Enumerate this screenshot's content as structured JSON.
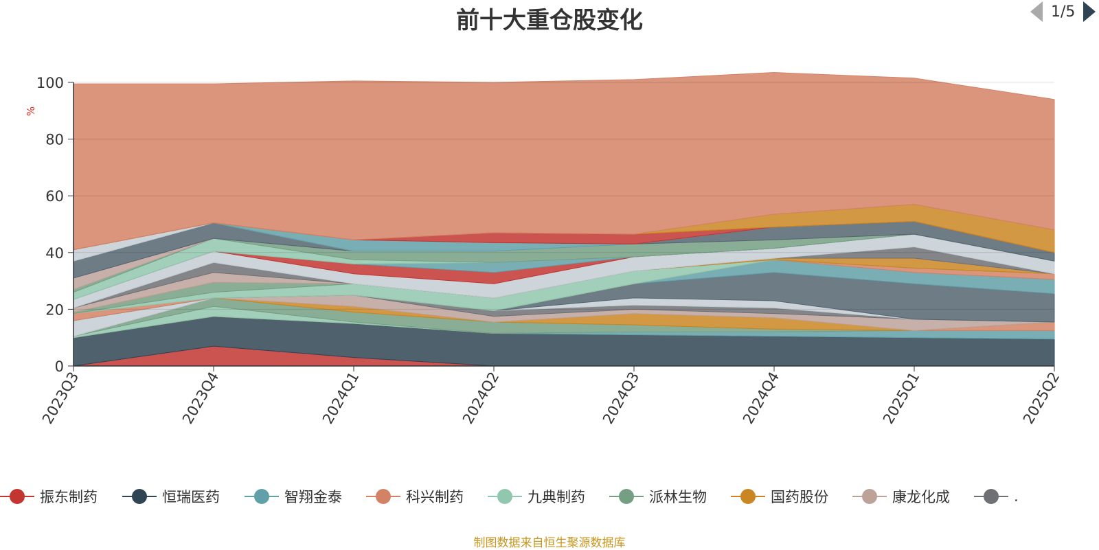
{
  "title": "前十大重仓股变化",
  "source_note": "制图数据来自恒生聚源数据库",
  "legend_pager": "1/5",
  "chart_data": {
    "type": "area",
    "stacked": true,
    "title": "前十大重仓股变化",
    "ylabel": "%",
    "ylim": [
      0,
      100
    ],
    "yticks": [
      0,
      20,
      40,
      60,
      80,
      100
    ],
    "categories": [
      "2023Q3",
      "2023Q4",
      "2024Q1",
      "2024Q2",
      "2024Q3",
      "2024Q4",
      "2025Q1",
      "2025Q2"
    ],
    "legend_position": "bottom",
    "grid": true,
    "series": [
      {
        "name": "振东制药",
        "color": "#c23531",
        "values": [
          0,
          7,
          3,
          0,
          0,
          0,
          0,
          0
        ]
      },
      {
        "name": "恒瑞医药",
        "color": "#2f4554",
        "values": [
          10,
          10.5,
          12,
          11.5,
          11,
          10.5,
          10,
          9.5
        ]
      },
      {
        "name": "智翔金泰",
        "color": "#61a0a8",
        "values": [
          0,
          0,
          0,
          0,
          1,
          1.5,
          2.5,
          3
        ]
      },
      {
        "name": "科兴制药",
        "color": "#d48265",
        "values": [
          0,
          0,
          0,
          0,
          0,
          0,
          0,
          3
        ]
      },
      {
        "name": "九典制药",
        "color": "#91c7ae",
        "values": [
          0.5,
          3.5,
          0.5,
          0,
          0,
          0,
          0,
          0
        ]
      },
      {
        "name": "派林生物",
        "color": "#749f83",
        "values": [
          0,
          3,
          3.5,
          4,
          2.5,
          1,
          0,
          0
        ]
      },
      {
        "name": "国药股份",
        "color": "#ca8622",
        "values": [
          0,
          0,
          2,
          0,
          4,
          4,
          0,
          0
        ]
      },
      {
        "name": "康龙化成",
        "color": "#bda29a",
        "values": [
          0,
          0,
          4,
          2,
          1.5,
          1.5,
          4,
          0
        ]
      },
      {
        "name": "",
        "color": "#6e7074",
        "values": [
          0,
          0,
          0,
          2,
          1.5,
          2,
          0,
          0
        ]
      },
      {
        "name": "",
        "color": "#c4ccd3",
        "values": [
          5.5,
          0,
          0,
          0,
          2.5,
          2.5,
          0,
          0
        ]
      },
      {
        "name": "",
        "color": "#546570",
        "values": [
          0,
          0,
          0,
          0,
          5,
          10,
          12.5,
          10
        ]
      },
      {
        "name": "",
        "color": "#61a0a8",
        "values": [
          0,
          0,
          0,
          0,
          0,
          4.5,
          4,
          5
        ]
      },
      {
        "name": "",
        "color": "#d48265",
        "values": [
          2.5,
          0,
          0,
          0,
          0,
          0,
          1.5,
          2
        ]
      },
      {
        "name": "",
        "color": "#91c7ae",
        "values": [
          0,
          2,
          4,
          4.5,
          4.5,
          0,
          0,
          0
        ]
      },
      {
        "name": "",
        "color": "#749f83",
        "values": [
          0.5,
          3.5,
          0,
          0,
          0,
          0,
          0,
          0
        ]
      },
      {
        "name": "",
        "color": "#ca8622",
        "values": [
          0,
          0,
          0,
          0,
          0,
          0.5,
          3.5,
          0
        ]
      },
      {
        "name": "",
        "color": "#bda29a",
        "values": [
          1.5,
          3.5,
          0,
          0,
          0,
          0,
          0,
          0
        ]
      },
      {
        "name": "",
        "color": "#6e7074",
        "values": [
          0,
          3.5,
          0,
          0,
          0,
          0,
          4,
          0
        ]
      },
      {
        "name": "",
        "color": "#c4ccd3",
        "values": [
          3,
          4,
          3.5,
          5,
          5,
          3.5,
          4.5,
          4.5
        ]
      },
      {
        "name": "",
        "color": "#c23531",
        "values": [
          0,
          0,
          3.5,
          4,
          0,
          0,
          0,
          0
        ]
      },
      {
        "name": "",
        "color": "#61a0a8",
        "values": [
          0,
          0,
          0,
          3.5,
          0,
          0,
          0,
          0
        ]
      },
      {
        "name": "",
        "color": "#91c7ae",
        "values": [
          2.5,
          4.5,
          1.5,
          0,
          0,
          0,
          0,
          0
        ]
      },
      {
        "name": "",
        "color": "#749f83",
        "values": [
          1,
          0,
          3,
          4,
          4.5,
          3,
          0,
          0
        ]
      },
      {
        "name": "",
        "color": "#bda29a",
        "values": [
          4,
          0,
          0,
          0,
          0,
          0,
          0,
          0
        ]
      },
      {
        "name": "",
        "color": "#546570",
        "values": [
          6,
          5.5,
          0,
          0,
          0,
          4.5,
          4.5,
          3
        ]
      },
      {
        "name": "",
        "color": "#c4ccd3",
        "values": [
          4,
          0,
          0,
          0,
          0,
          0,
          0,
          0
        ]
      },
      {
        "name": "",
        "color": "#61a0a8",
        "values": [
          0,
          0,
          4,
          3,
          0,
          0,
          0,
          0
        ]
      },
      {
        "name": "",
        "color": "#c23531",
        "values": [
          0,
          0,
          0,
          3.5,
          3.5,
          0,
          0,
          0
        ]
      },
      {
        "name": "",
        "color": "#ca8622",
        "values": [
          0,
          0,
          0,
          0,
          0,
          4.5,
          6,
          8
        ]
      },
      {
        "name": "",
        "color": "#d48265",
        "values": [
          58.5,
          49,
          56,
          53,
          54.5,
          50,
          44.5,
          46
        ]
      }
    ]
  },
  "legend": {
    "items": [
      {
        "label": "振东制药",
        "color": "#c23531",
        "icon": "circle-icon"
      },
      {
        "label": "恒瑞医药",
        "color": "#2f4554",
        "icon": "circle-icon"
      },
      {
        "label": "智翔金泰",
        "color": "#61a0a8",
        "icon": "circle-icon"
      },
      {
        "label": "科兴制药",
        "color": "#d48265",
        "icon": "circle-icon"
      },
      {
        "label": "九典制药",
        "color": "#91c7ae",
        "icon": "circle-icon"
      },
      {
        "label": "派林生物",
        "color": "#749f83",
        "icon": "circle-icon"
      },
      {
        "label": "国药股份",
        "color": "#ca8622",
        "icon": "circle-icon"
      },
      {
        "label": "康龙化成",
        "color": "#bda29a",
        "icon": "circle-icon"
      },
      {
        "label": ".",
        "color": "#6e7074",
        "icon": "circle-icon"
      }
    ]
  }
}
